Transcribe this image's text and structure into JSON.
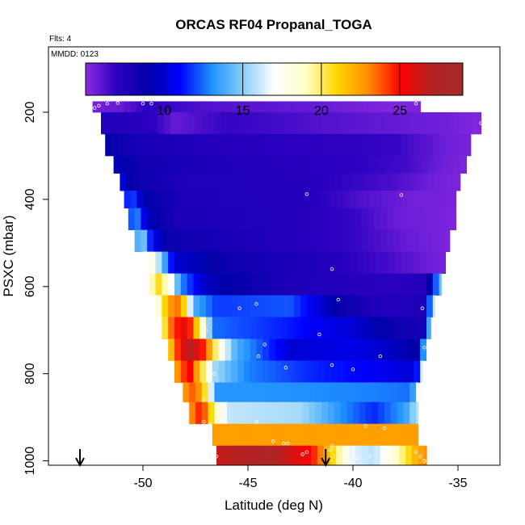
{
  "chart_data": {
    "type": "heatmap",
    "title": "ORCAS RF04 Propanal_TOGA",
    "flights_label": "Flts: 4",
    "date_label": "MMDD: 0123",
    "xlabel": "Latitude (deg N)",
    "ylabel": "PSXC (mbar)",
    "xlim": [
      -54.5,
      -33.0
    ],
    "ylim": [
      1010,
      50
    ],
    "x_ticks": [
      -50,
      -45,
      -40,
      -35
    ],
    "x_tick_labels": [
      "-50",
      "-45",
      "-40",
      "-35"
    ],
    "y_ticks": [
      200,
      400,
      600,
      800,
      1000
    ],
    "y_tick_labels": [
      "200",
      "400",
      "600",
      "800",
      "1000"
    ],
    "colorbar": {
      "min": 5,
      "max": 29,
      "ticks": [
        10,
        15,
        20,
        25
      ],
      "tick_labels": [
        "10",
        "15",
        "20",
        "25"
      ],
      "colors": [
        "#8b2be2",
        "#2a00c0",
        "#0000a8",
        "#0000ff",
        "#1e90ff",
        "#87cefa",
        "#ffffff",
        "#ffffc8",
        "#ffd700",
        "#ff8c00",
        "#ff0000",
        "#b22222",
        "#a52a2a"
      ]
    },
    "arrows_latitude": [
      -53.0,
      -41.3
    ],
    "rows": [
      {
        "p_top": 175,
        "p_bot": 200,
        "lat_start": -52.4,
        "lat_end": -36.8,
        "stops": [
          [
            -52.4,
            5.5
          ],
          [
            -51.0,
            5.8
          ],
          [
            -49.8,
            7.0
          ],
          [
            -47.0,
            6.2
          ],
          [
            -42.0,
            5.8
          ],
          [
            -38.0,
            5.2
          ],
          [
            -36.8,
            5.4
          ]
        ]
      },
      {
        "p_top": 200,
        "p_bot": 250,
        "lat_start": -52.0,
        "lat_end": -33.9,
        "stops": [
          [
            -52.0,
            7.5
          ],
          [
            -49.5,
            7.0
          ],
          [
            -48.5,
            5.8
          ],
          [
            -46.0,
            6.8
          ],
          [
            -40.0,
            6.0
          ],
          [
            -36.0,
            5.6
          ],
          [
            -33.9,
            5.2
          ]
        ]
      },
      {
        "p_top": 250,
        "p_bot": 300,
        "lat_start": -51.8,
        "lat_end": -34.4,
        "stops": [
          [
            -51.8,
            9.0
          ],
          [
            -50.5,
            8.0
          ],
          [
            -46.0,
            7.2
          ],
          [
            -42.0,
            7.0
          ],
          [
            -38.0,
            6.8
          ],
          [
            -35.5,
            5.6
          ],
          [
            -34.4,
            5.4
          ]
        ]
      },
      {
        "p_top": 300,
        "p_bot": 340,
        "lat_start": -51.4,
        "lat_end": -34.6,
        "stops": [
          [
            -51.4,
            9.5
          ],
          [
            -50.0,
            8.2
          ],
          [
            -45.0,
            7.3
          ],
          [
            -40.0,
            7.0
          ],
          [
            -37.5,
            6.5
          ],
          [
            -35.5,
            5.5
          ],
          [
            -34.6,
            5.3
          ]
        ]
      },
      {
        "p_top": 340,
        "p_bot": 380,
        "lat_start": -51.1,
        "lat_end": -34.9,
        "stops": [
          [
            -51.1,
            10.5
          ],
          [
            -50.5,
            8.6
          ],
          [
            -48.0,
            7.5
          ],
          [
            -42.0,
            7.2
          ],
          [
            -38.0,
            6.3
          ],
          [
            -36.0,
            5.5
          ],
          [
            -34.9,
            5.3
          ]
        ]
      },
      {
        "p_top": 380,
        "p_bot": 420,
        "lat_start": -50.9,
        "lat_end": -35.1,
        "stops": [
          [
            -50.9,
            11.2
          ],
          [
            -50.5,
            12.0
          ],
          [
            -50.0,
            9.0
          ],
          [
            -48.0,
            7.6
          ],
          [
            -42.0,
            7.2
          ],
          [
            -39.5,
            6.2
          ],
          [
            -37.0,
            5.5
          ],
          [
            -35.1,
            5.4
          ]
        ]
      },
      {
        "p_top": 420,
        "p_bot": 470,
        "lat_start": -50.7,
        "lat_end": -35.1,
        "stops": [
          [
            -50.7,
            11.8
          ],
          [
            -50.3,
            13.0
          ],
          [
            -49.8,
            9.5
          ],
          [
            -48.5,
            7.8
          ],
          [
            -43.0,
            7.3
          ],
          [
            -40.0,
            6.8
          ],
          [
            -38.0,
            5.7
          ],
          [
            -35.1,
            5.3
          ]
        ]
      },
      {
        "p_top": 470,
        "p_bot": 520,
        "lat_start": -50.4,
        "lat_end": -35.4,
        "stops": [
          [
            -50.4,
            13.5
          ],
          [
            -50.0,
            15.0
          ],
          [
            -49.6,
            11.0
          ],
          [
            -48.8,
            8.5
          ],
          [
            -44.0,
            7.4
          ],
          [
            -40.0,
            6.8
          ],
          [
            -37.5,
            5.8
          ],
          [
            -35.4,
            5.3
          ]
        ]
      },
      {
        "p_top": 520,
        "p_bot": 570,
        "lat_start": -50.0,
        "lat_end": -35.6,
        "stops": [
          [
            -50.0,
            16.5
          ],
          [
            -49.6,
            18.0
          ],
          [
            -49.2,
            15.5
          ],
          [
            -48.5,
            10.0
          ],
          [
            -46.0,
            8.4
          ],
          [
            -42.0,
            7.5
          ],
          [
            -38.5,
            6.5
          ],
          [
            -36.5,
            5.7
          ],
          [
            -35.6,
            5.4
          ]
        ]
      },
      {
        "p_top": 570,
        "p_bot": 620,
        "lat_start": -49.7,
        "lat_end": -35.8,
        "stops": [
          [
            -49.7,
            18.5
          ],
          [
            -49.2,
            21.0
          ],
          [
            -48.7,
            17.5
          ],
          [
            -48.2,
            13.0
          ],
          [
            -47.0,
            9.5
          ],
          [
            -43.0,
            7.6
          ],
          [
            -38.0,
            7.0
          ],
          [
            -36.5,
            7.4
          ],
          [
            -35.8,
            15.0
          ]
        ]
      },
      {
        "p_top": 620,
        "p_bot": 670,
        "lat_start": -49.4,
        "lat_end": -36.1,
        "stops": [
          [
            -49.4,
            17.0
          ],
          [
            -48.8,
            22.5
          ],
          [
            -48.2,
            23.5
          ],
          [
            -47.6,
            14.0
          ],
          [
            -46.5,
            11.8
          ],
          [
            -43.0,
            12.2
          ],
          [
            -40.5,
            8.5
          ],
          [
            -38.5,
            7.3
          ],
          [
            -36.6,
            7.6
          ],
          [
            -36.1,
            17.0
          ]
        ]
      },
      {
        "p_top": 670,
        "p_bot": 720,
        "lat_start": -49.1,
        "lat_end": -36.3,
        "stops": [
          [
            -49.1,
            19.0
          ],
          [
            -48.6,
            24.0
          ],
          [
            -47.9,
            26.0
          ],
          [
            -47.3,
            20.0
          ],
          [
            -46.6,
            12.5
          ],
          [
            -43.0,
            11.3
          ],
          [
            -40.0,
            10.0
          ],
          [
            -37.5,
            8.2
          ],
          [
            -36.6,
            8.0
          ],
          [
            -36.3,
            16.5
          ]
        ]
      },
      {
        "p_top": 720,
        "p_bot": 770,
        "lat_start": -48.8,
        "lat_end": -36.5,
        "stops": [
          [
            -48.8,
            20.5
          ],
          [
            -48.2,
            25.5
          ],
          [
            -47.7,
            27.0
          ],
          [
            -47.0,
            24.0
          ],
          [
            -46.4,
            18.5
          ],
          [
            -45.6,
            14.0
          ],
          [
            -43.0,
            10.0
          ],
          [
            -40.0,
            10.5
          ],
          [
            -37.5,
            9.2
          ],
          [
            -36.8,
            8.6
          ],
          [
            -36.5,
            17.5
          ]
        ]
      },
      {
        "p_top": 770,
        "p_bot": 820,
        "lat_start": -48.5,
        "lat_end": -36.7,
        "stops": [
          [
            -48.5,
            22.0
          ],
          [
            -47.8,
            25.5
          ],
          [
            -47.2,
            20.5
          ],
          [
            -46.6,
            15.5
          ],
          [
            -45.0,
            12.8
          ],
          [
            -42.0,
            11.5
          ],
          [
            -39.0,
            10.8
          ],
          [
            -37.0,
            10.0
          ],
          [
            -36.7,
            17.5
          ]
        ]
      },
      {
        "p_top": 820,
        "p_bot": 865,
        "lat_start": -48.1,
        "lat_end": -36.9,
        "stops": [
          [
            -48.1,
            22.5
          ],
          [
            -47.5,
            24.0
          ],
          [
            -46.9,
            19.5
          ],
          [
            -46.6,
            13.2
          ],
          [
            -42.0,
            13.0
          ],
          [
            -39.0,
            12.8
          ],
          [
            -37.2,
            12.5
          ],
          [
            -36.9,
            18.0
          ]
        ]
      },
      {
        "p_top": 865,
        "p_bot": 915,
        "lat_start": -47.8,
        "lat_end": -36.9,
        "stops": [
          [
            -47.8,
            22.5
          ],
          [
            -47.2,
            25.0
          ],
          [
            -46.6,
            19.5
          ],
          [
            -46.0,
            16.0
          ],
          [
            -42.5,
            15.5
          ],
          [
            -40.5,
            13.0
          ],
          [
            -39.0,
            11.5
          ],
          [
            -37.5,
            13.5
          ],
          [
            -36.9,
            16.0
          ]
        ]
      },
      {
        "p_top": 915,
        "p_bot": 965,
        "lat_start": -46.7,
        "lat_end": -36.9,
        "stops": [
          [
            -46.7,
            22.5
          ],
          [
            -43.0,
            22.5
          ],
          [
            -40.0,
            22.5
          ],
          [
            -36.9,
            22.5
          ]
        ]
      },
      {
        "p_top": 965,
        "p_bot": 1010,
        "lat_start": -46.5,
        "lat_end": -36.5,
        "stops": [
          [
            -46.5,
            26.5
          ],
          [
            -44.0,
            27.5
          ],
          [
            -42.0,
            25.0
          ],
          [
            -41.0,
            21.0
          ],
          [
            -40.0,
            16.5
          ],
          [
            -39.0,
            15.8
          ],
          [
            -38.0,
            18.5
          ],
          [
            -37.0,
            22.0
          ],
          [
            -36.5,
            23.0
          ]
        ]
      }
    ],
    "sample_points": [
      [
        -52.3,
        190
      ],
      [
        -52.1,
        185
      ],
      [
        -51.7,
        180
      ],
      [
        -51.2,
        179
      ],
      [
        -50.0,
        180
      ],
      [
        -49.6,
        180
      ],
      [
        -37.0,
        180
      ],
      [
        -33.9,
        225
      ],
      [
        -42.2,
        388
      ],
      [
        -37.7,
        390
      ],
      [
        -41.0,
        560
      ],
      [
        -45.4,
        650
      ],
      [
        -44.6,
        640
      ],
      [
        -40.7,
        630
      ],
      [
        -36.7,
        650
      ],
      [
        -47.0,
        700
      ],
      [
        -44.2,
        733
      ],
      [
        -41.6,
        710
      ],
      [
        -36.6,
        740
      ],
      [
        -44.5,
        760
      ],
      [
        -38.7,
        760
      ],
      [
        -43.2,
        786
      ],
      [
        -41.0,
        780
      ],
      [
        -40.0,
        790
      ],
      [
        -36.1,
        770
      ],
      [
        -46.6,
        800
      ],
      [
        -47.1,
        860
      ],
      [
        -47.1,
        910
      ],
      [
        -46.8,
        915
      ],
      [
        -46.2,
        910
      ],
      [
        -44.6,
        910
      ],
      [
        -39.4,
        920
      ],
      [
        -38.5,
        925
      ],
      [
        -36.6,
        910
      ],
      [
        -36.2,
        905
      ],
      [
        -46.8,
        955
      ],
      [
        -46.6,
        980
      ],
      [
        -46.5,
        990
      ],
      [
        -43.8,
        955
      ],
      [
        -43.3,
        960
      ],
      [
        -43.1,
        960
      ],
      [
        -42.4,
        985
      ],
      [
        -42.2,
        980
      ],
      [
        -41.1,
        975
      ],
      [
        -41.0,
        965
      ],
      [
        -40.6,
        990
      ],
      [
        -39.8,
        995
      ],
      [
        -39.2,
        990
      ],
      [
        -37.0,
        980
      ],
      [
        -36.8,
        990
      ],
      [
        -36.6,
        1000
      ]
    ]
  }
}
